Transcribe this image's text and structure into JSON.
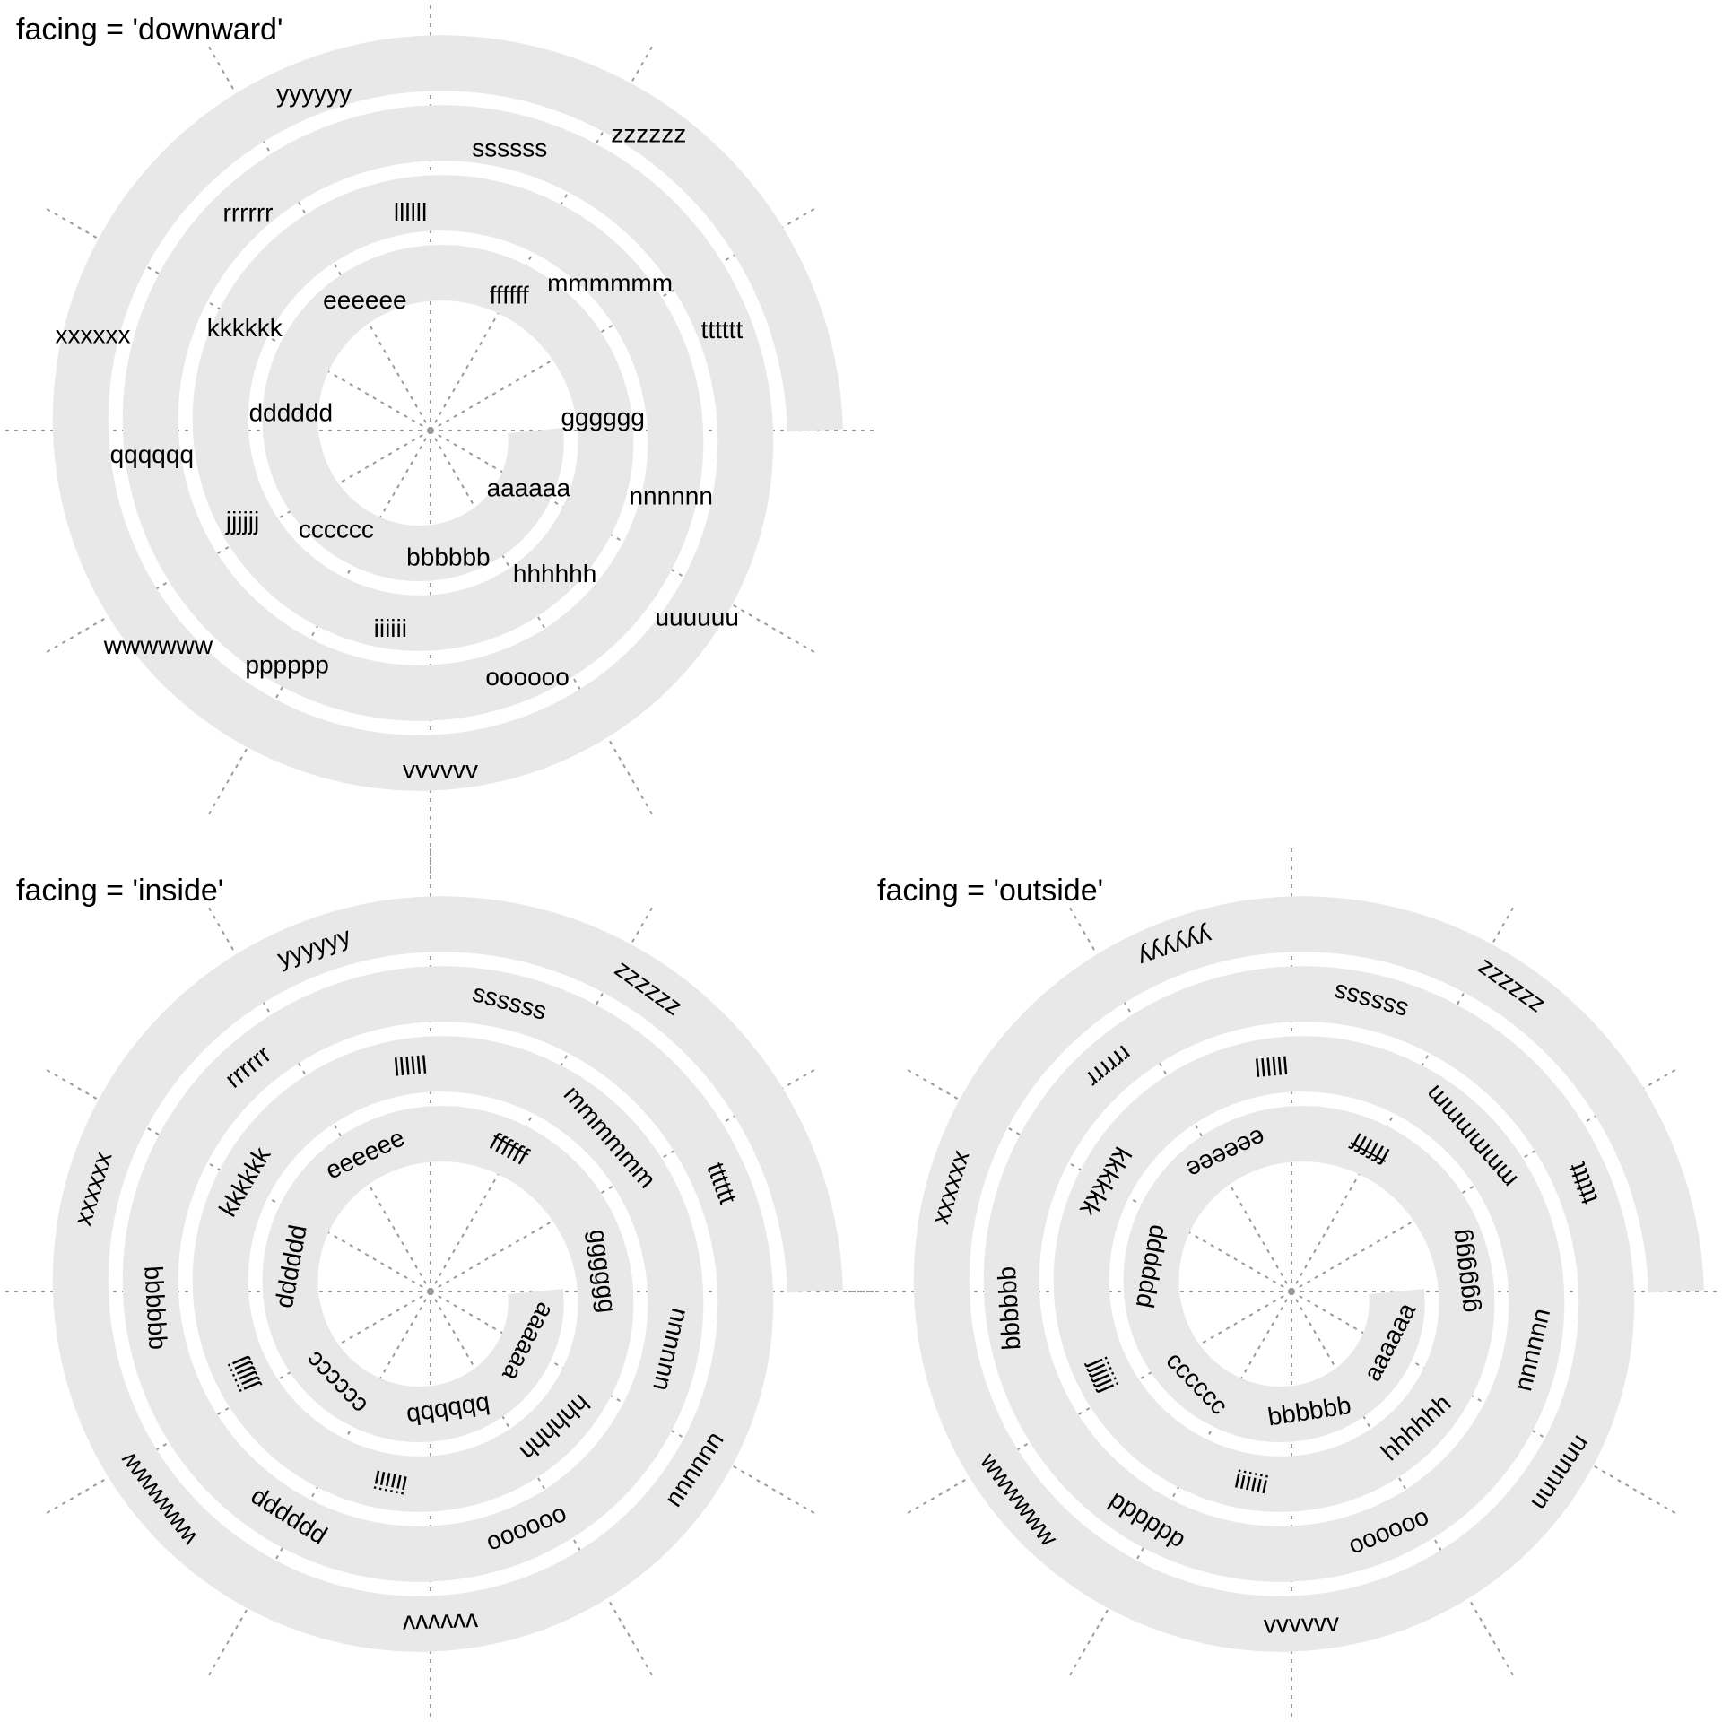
{
  "colors": {
    "track": "#e8e8e8",
    "guide": "#9a9a9a",
    "text": "#000000",
    "background": "#ffffff"
  },
  "panels": [
    {
      "id": "downward",
      "facing": "downward",
      "title": "facing = 'downward'"
    },
    {
      "id": "inside",
      "facing": "inside",
      "title": "facing = 'inside'"
    },
    {
      "id": "outside",
      "facing": "outside",
      "title": "facing = 'outside'"
    }
  ],
  "chart_data": {
    "type": "spiral",
    "spokes": 12,
    "turns": 4,
    "labels": [
      "aaaaaa",
      "bbbbbb",
      "cccccc",
      "dddddd",
      "eeeeee",
      "ffffff",
      "gggggg",
      "hhhhhh",
      "iiiiii",
      "jjjjjj",
      "kkkkkk",
      "llllll",
      "mmmmmm",
      "nnnnnn",
      "oooooo",
      "pppppp",
      "qqqqqq",
      "rrrrrr",
      "ssssss",
      "tttttt",
      "uuuuuu",
      "vvvvvv",
      "wwwwww",
      "xxxxxx",
      "yyyyyy",
      "zzzzzz"
    ]
  }
}
